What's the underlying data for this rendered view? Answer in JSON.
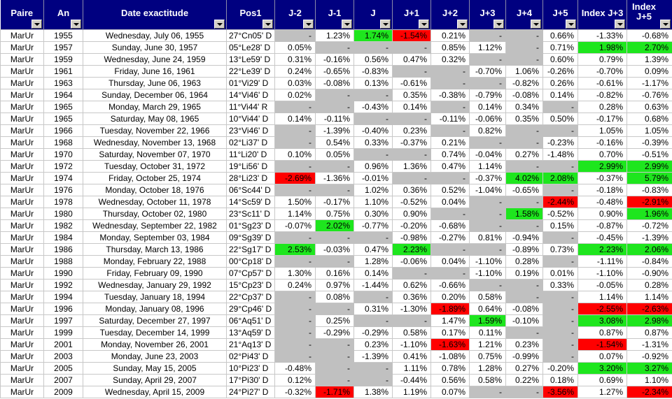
{
  "colors": {
    "header": "#000080",
    "green": "#1ee61e",
    "red": "#ff0000",
    "empty": "#c0c0c0"
  },
  "headers": [
    "Paire",
    "An",
    "Date exactitude",
    "Pos1",
    "J-2",
    "J-1",
    "J",
    "J+1",
    "J+2",
    "J+3",
    "J+4",
    "J+5",
    "Index J+3",
    "Index J+5"
  ],
  "rows": [
    {
      "paire": "MarUr",
      "an": "1955",
      "date": "Wednesday, July 06, 1955",
      "pos": "27°Cn05' D",
      "v": [
        "-",
        "1.23%",
        "1.74%",
        "-1.54%",
        "0.21%",
        "-",
        "-",
        "0.66%",
        "-1.33%",
        "-0.68%"
      ],
      "hl": "..gr......"
    },
    {
      "paire": "MarUr",
      "an": "1957",
      "date": "Sunday, June 30, 1957",
      "pos": "05°Le28' D",
      "v": [
        "0.05%",
        "-",
        "-",
        "-",
        "0.85%",
        "1.12%",
        "-",
        "0.71%",
        "1.98%",
        "2.70%"
      ],
      "hl": "........gg"
    },
    {
      "paire": "MarUr",
      "an": "1959",
      "date": "Wednesday, June 24, 1959",
      "pos": "13°Le59' D",
      "v": [
        "0.31%",
        "-0.16%",
        "0.56%",
        "0.47%",
        "0.32%",
        "-",
        "-",
        "0.60%",
        "0.79%",
        "1.39%"
      ],
      "hl": ".........."
    },
    {
      "paire": "MarUr",
      "an": "1961",
      "date": "Friday, June 16, 1961",
      "pos": "22°Le39' D",
      "v": [
        "0.24%",
        "-0.65%",
        "-0.83%",
        "-",
        "-",
        "-0.70%",
        "1.06%",
        "-0.26%",
        "-0.70%",
        "0.09%"
      ],
      "hl": ".........."
    },
    {
      "paire": "MarUr",
      "an": "1963",
      "date": "Thursday, June 06, 1963",
      "pos": "01°Vi29' D",
      "v": [
        "0.03%",
        "-0.08%",
        "0.13%",
        "-0.61%",
        "-",
        "-",
        "-0.82%",
        "0.26%",
        "-0.61%",
        "-1.17%"
      ],
      "hl": ".........."
    },
    {
      "paire": "MarUr",
      "an": "1964",
      "date": "Sunday, December 06, 1964",
      "pos": "14°Vi46' D",
      "v": [
        "0.02%",
        "-",
        "-",
        "0.35%",
        "-0.38%",
        "-0.79%",
        "-0.08%",
        "0.14%",
        "-0.82%",
        "-0.76%"
      ],
      "hl": ".........."
    },
    {
      "paire": "MarUr",
      "an": "1965",
      "date": "Monday, March 29, 1965",
      "pos": "11°Vi44' R",
      "v": [
        "-",
        "-",
        "-0.43%",
        "0.14%",
        "-",
        "0.14%",
        "0.34%",
        "-",
        "0.28%",
        "0.63%"
      ],
      "hl": ".........."
    },
    {
      "paire": "MarUr",
      "an": "1965",
      "date": "Saturday, May 08, 1965",
      "pos": "10°Vi44' D",
      "v": [
        "0.14%",
        "-0.11%",
        "-",
        "-",
        "-0.11%",
        "-0.06%",
        "0.35%",
        "0.50%",
        "-0.17%",
        "0.68%"
      ],
      "hl": ".........."
    },
    {
      "paire": "MarUr",
      "an": "1966",
      "date": "Tuesday, November 22, 1966",
      "pos": "23°Vi46' D",
      "v": [
        "-",
        "-1.39%",
        "-0.40%",
        "0.23%",
        "-",
        "0.82%",
        "-",
        "-",
        "1.05%",
        "1.05%"
      ],
      "hl": ".........."
    },
    {
      "paire": "MarUr",
      "an": "1968",
      "date": "Wednesday, November 13, 1968",
      "pos": "02°Li37' D",
      "v": [
        "-",
        "0.54%",
        "0.33%",
        "-0.37%",
        "0.21%",
        "-",
        "-",
        "-0.23%",
        "-0.16%",
        "-0.39%"
      ],
      "hl": ".........."
    },
    {
      "paire": "MarUr",
      "an": "1970",
      "date": "Saturday, November 07, 1970",
      "pos": "11°Li20' D",
      "v": [
        "0.10%",
        "0.05%",
        "-",
        "-",
        "0.74%",
        "-0.04%",
        "0.27%",
        "-1.48%",
        "0.70%",
        "-0.51%"
      ],
      "hl": ".........."
    },
    {
      "paire": "MarUr",
      "an": "1972",
      "date": "Tuesday, October 31, 1972",
      "pos": "19°Li56' D",
      "v": [
        "-",
        "-",
        "0.96%",
        "1.36%",
        "0.47%",
        "1.14%",
        "-",
        "-",
        "2.99%",
        "2.99%"
      ],
      "hl": "........gg"
    },
    {
      "paire": "MarUr",
      "an": "1974",
      "date": "Friday, October 25, 1974",
      "pos": "28°Li23' D",
      "v": [
        "-2.69%",
        "-1.36%",
        "-0.01%",
        "-",
        "-",
        "-0.37%",
        "4.02%",
        "2.08%",
        "-0.37%",
        "5.79%"
      ],
      "hl": "r.....gg.g"
    },
    {
      "paire": "MarUr",
      "an": "1976",
      "date": "Monday, October 18, 1976",
      "pos": "06°Sc44' D",
      "v": [
        "-",
        "-",
        "1.02%",
        "0.36%",
        "0.52%",
        "-1.04%",
        "-0.65%",
        "-",
        "-0.18%",
        "-0.83%"
      ],
      "hl": ".........."
    },
    {
      "paire": "MarUr",
      "an": "1978",
      "date": "Wednesday, October 11, 1978",
      "pos": "14°Sc59' D",
      "v": [
        "1.50%",
        "-0.17%",
        "1.10%",
        "-0.52%",
        "0.04%",
        "-",
        "-",
        "-2.44%",
        "-0.48%",
        "-2.91%"
      ],
      "hl": ".......r.r"
    },
    {
      "paire": "MarUr",
      "an": "1980",
      "date": "Thursday, October 02, 1980",
      "pos": "23°Sc11' D",
      "v": [
        "1.14%",
        "0.75%",
        "0.30%",
        "0.90%",
        "-",
        "-",
        "1.58%",
        "-0.52%",
        "0.90%",
        "1.96%"
      ],
      "hl": "......g..g"
    },
    {
      "paire": "MarUr",
      "an": "1982",
      "date": "Wednesday, September 22, 1982",
      "pos": "01°Sg23' D",
      "v": [
        "-0.07%",
        "2.02%",
        "-0.77%",
        "-0.20%",
        "-0.68%",
        "-",
        "-",
        "0.15%",
        "-0.87%",
        "-0.72%"
      ],
      "hl": ".g........"
    },
    {
      "paire": "MarUr",
      "an": "1984",
      "date": "Monday, September 03, 1984",
      "pos": "09°Sg39' D",
      "v": [
        "-",
        "-",
        "-",
        "-0.98%",
        "-0.27%",
        "0.81%",
        "-0.94%",
        "-",
        "-0.45%",
        "-1.39%"
      ],
      "hl": ".........."
    },
    {
      "paire": "MarUr",
      "an": "1986",
      "date": "Thursday, March 13, 1986",
      "pos": "22°Sg17' D",
      "v": [
        "2.53%",
        "-0.03%",
        "0.47%",
        "2.23%",
        "-",
        "-",
        "-0.89%",
        "0.73%",
        "2.23%",
        "2.06%"
      ],
      "hl": "g..g....gg"
    },
    {
      "paire": "MarUr",
      "an": "1988",
      "date": "Monday, February 22, 1988",
      "pos": "00°Cp18' D",
      "v": [
        "-",
        "-",
        "1.28%",
        "-0.06%",
        "0.04%",
        "-1.10%",
        "0.28%",
        "-",
        "-1.11%",
        "-0.84%"
      ],
      "hl": ".........."
    },
    {
      "paire": "MarUr",
      "an": "1990",
      "date": "Friday, February 09, 1990",
      "pos": "07°Cp57' D",
      "v": [
        "1.30%",
        "0.16%",
        "0.14%",
        "-",
        "-",
        "-1.10%",
        "0.19%",
        "0.01%",
        "-1.10%",
        "-0.90%"
      ],
      "hl": ".........."
    },
    {
      "paire": "MarUr",
      "an": "1992",
      "date": "Wednesday, January 29, 1992",
      "pos": "15°Cp23' D",
      "v": [
        "0.24%",
        "0.97%",
        "-1.44%",
        "0.62%",
        "-0.66%",
        "-",
        "-",
        "0.33%",
        "-0.05%",
        "0.28%"
      ],
      "hl": ".........."
    },
    {
      "paire": "MarUr",
      "an": "1994",
      "date": "Tuesday, January 18, 1994",
      "pos": "22°Cp37' D",
      "v": [
        "-",
        "0.08%",
        "-",
        "0.36%",
        "0.20%",
        "0.58%",
        "-",
        "-",
        "1.14%",
        "1.14%"
      ],
      "hl": ".........."
    },
    {
      "paire": "MarUr",
      "an": "1996",
      "date": "Monday, January 08, 1996",
      "pos": "29°Cp46' D",
      "v": [
        "-",
        "-",
        "0.31%",
        "-1.30%",
        "-1.89%",
        "0.64%",
        "-0.08%",
        "-",
        "-2.55%",
        "-2.63%"
      ],
      "hl": "....r...rr"
    },
    {
      "paire": "MarUr",
      "an": "1997",
      "date": "Saturday, December 27, 1997",
      "pos": "06°Aq51' D",
      "v": [
        "-",
        "0.25%",
        "-",
        "-",
        "1.47%",
        "1.59%",
        "-0.10%",
        "-",
        "3.08%",
        "2.98%"
      ],
      "hl": ".....g..gg"
    },
    {
      "paire": "MarUr",
      "an": "1999",
      "date": "Tuesday, December 14, 1999",
      "pos": "13°Aq59' D",
      "v": [
        "-",
        "-0.29%",
        "-0.29%",
        "0.58%",
        "0.17%",
        "0.11%",
        "-",
        "-",
        "0.87%",
        "0.87%"
      ],
      "hl": ".........."
    },
    {
      "paire": "MarUr",
      "an": "2001",
      "date": "Monday, November 26, 2001",
      "pos": "21°Aq13' D",
      "v": [
        "-",
        "-",
        "0.23%",
        "-1.10%",
        "-1.63%",
        "1.21%",
        "0.23%",
        "-",
        "-1.54%",
        "-1.31%"
      ],
      "hl": "....r...r."
    },
    {
      "paire": "MarUr",
      "an": "2003",
      "date": "Monday, June 23, 2003",
      "pos": "02°Pi43' D",
      "v": [
        "-",
        "-",
        "-1.39%",
        "0.41%",
        "-1.08%",
        "0.75%",
        "-0.99%",
        "-",
        "0.07%",
        "-0.92%"
      ],
      "hl": ".........."
    },
    {
      "paire": "MarUr",
      "an": "2005",
      "date": "Sunday, May 15, 2005",
      "pos": "10°Pi23' D",
      "v": [
        "-0.48%",
        "-",
        "-",
        "1.11%",
        "0.78%",
        "1.28%",
        "0.27%",
        "-0.20%",
        "3.20%",
        "3.27%"
      ],
      "hl": "........gg"
    },
    {
      "paire": "MarUr",
      "an": "2007",
      "date": "Sunday, April 29, 2007",
      "pos": "17°Pi30' D",
      "v": [
        "0.12%",
        "-",
        "-",
        "-0.44%",
        "0.56%",
        "0.58%",
        "0.22%",
        "0.18%",
        "0.69%",
        "1.10%"
      ],
      "hl": ".........."
    },
    {
      "paire": "MarUr",
      "an": "2009",
      "date": "Wednesday, April 15, 2009",
      "pos": "24°Pi27' D",
      "v": [
        "-0.32%",
        "-1.71%",
        "1.38%",
        "1.19%",
        "0.07%",
        "-",
        "-",
        "-3.56%",
        "1.27%",
        "-2.34%"
      ],
      "hl": ".r.....r.r"
    }
  ]
}
